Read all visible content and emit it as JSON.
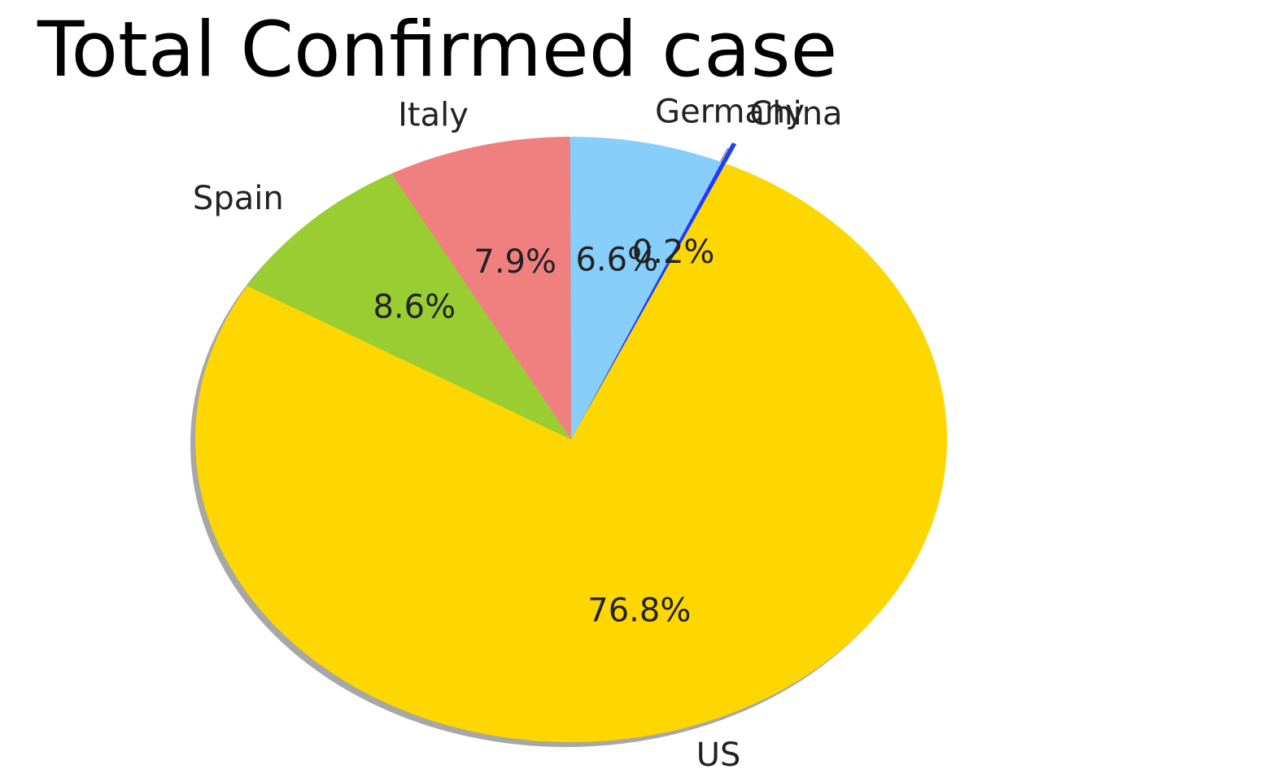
{
  "chart_data": {
    "type": "pie",
    "title": "Total Confirmed case",
    "slices": [
      {
        "label": "US",
        "pct_label": "76.8%",
        "value": 76.8,
        "color": "#FFD700",
        "exploded": false
      },
      {
        "label": "China",
        "pct_label": "0.2%",
        "value": 0.2,
        "color": "#1E3CFF",
        "exploded": true
      },
      {
        "label": "Germany",
        "pct_label": "6.6%",
        "value": 6.6,
        "color": "#87CEFA",
        "exploded": false
      },
      {
        "label": "Italy",
        "pct_label": "7.9%",
        "value": 7.9,
        "color": "#F08080",
        "exploded": false
      },
      {
        "label": "Spain",
        "pct_label": "8.6%",
        "value": 8.6,
        "color": "#9ACD32",
        "exploded": false
      }
    ],
    "shadow": true,
    "legend": "none"
  }
}
